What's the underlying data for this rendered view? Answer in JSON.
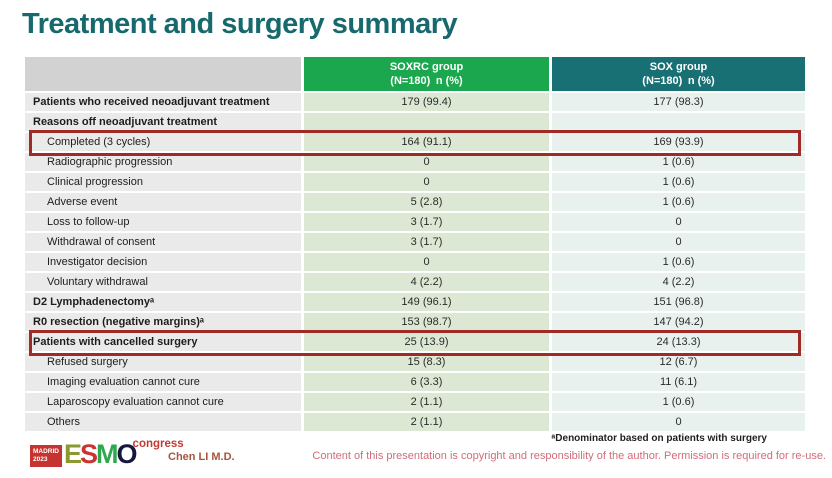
{
  "title": "Treatment and surgery summary",
  "table": {
    "header": {
      "soxrc_line1": "SOXRC group",
      "soxrc_line2": "(N=180) n (%)",
      "sox_line1": "SOX group",
      "sox_line2": "(N=180) n (%)"
    },
    "rows": [
      {
        "label": "Patients who received neoadjuvant treatment",
        "soxrc": "179 (99.4)",
        "sox": "177 (98.3)",
        "bold": true,
        "indent": false,
        "highlight": false
      },
      {
        "label": "Reasons off neoadjuvant treatment",
        "soxrc": "",
        "sox": "",
        "bold": true,
        "indent": false,
        "highlight": false
      },
      {
        "label": "Completed (3 cycles)",
        "soxrc": "164 (91.1)",
        "sox": "169 (93.9)",
        "bold": false,
        "indent": true,
        "highlight": true
      },
      {
        "label": "Radiographic progression",
        "soxrc": "0",
        "sox": "1 (0.6)",
        "bold": false,
        "indent": true,
        "highlight": false
      },
      {
        "label": "Clinical progression",
        "soxrc": "0",
        "sox": "1 (0.6)",
        "bold": false,
        "indent": true,
        "highlight": false
      },
      {
        "label": "Adverse event",
        "soxrc": "5 (2.8)",
        "sox": "1 (0.6)",
        "bold": false,
        "indent": true,
        "highlight": false
      },
      {
        "label": "Loss to follow-up",
        "soxrc": "3 (1.7)",
        "sox": "0",
        "bold": false,
        "indent": true,
        "highlight": false
      },
      {
        "label": "Withdrawal of consent",
        "soxrc": "3 (1.7)",
        "sox": "0",
        "bold": false,
        "indent": true,
        "highlight": false
      },
      {
        "label": "Investigator decision",
        "soxrc": "0",
        "sox": "1 (0.6)",
        "bold": false,
        "indent": true,
        "highlight": false
      },
      {
        "label": "Voluntary withdrawal",
        "soxrc": "4 (2.2)",
        "sox": "4 (2.2)",
        "bold": false,
        "indent": true,
        "highlight": false
      },
      {
        "label": "D2 Lymphadenectomyᵃ",
        "soxrc": "149 (96.1)",
        "sox": "151 (96.8)",
        "bold": true,
        "indent": false,
        "highlight": false
      },
      {
        "label": "R0 resection (negative margins)ᵃ",
        "soxrc": "153 (98.7)",
        "sox": "147 (94.2)",
        "bold": true,
        "indent": false,
        "highlight": false
      },
      {
        "label": "Patients with cancelled surgery",
        "soxrc": "25 (13.9)",
        "sox": "24 (13.3)",
        "bold": true,
        "indent": false,
        "highlight": true
      },
      {
        "label": "Refused surgery",
        "soxrc": "15 (8.3)",
        "sox": "12 (6.7)",
        "bold": false,
        "indent": true,
        "highlight": false
      },
      {
        "label": "Imaging evaluation cannot cure",
        "soxrc": "6 (3.3)",
        "sox": "11 (6.1)",
        "bold": false,
        "indent": true,
        "highlight": false
      },
      {
        "label": "Laparoscopy evaluation cannot cure",
        "soxrc": "2 (1.1)",
        "sox": "1 (0.6)",
        "bold": false,
        "indent": true,
        "highlight": false
      },
      {
        "label": "Others",
        "soxrc": "2 (1.1)",
        "sox": "0",
        "bold": false,
        "indent": true,
        "highlight": false
      }
    ]
  },
  "footer": {
    "logo": {
      "city": "MADRID",
      "year": "2023",
      "letters": [
        "E",
        "S",
        "M",
        "O"
      ],
      "congress": "congress"
    },
    "author": "Chen LI M.D.",
    "footnote": "ᵃDenominator based on patients with surgery",
    "copyright": "Content of this presentation is copyright and responsibility of the author. Permission is required for re-use."
  },
  "colors": {
    "title_teal": "#17696d",
    "header_green": "#1ba74e",
    "header_teal": "#186f74",
    "soxrc_cell": "#dce8d4",
    "sox_cell": "#e9f1ef",
    "label_cell": "#eaeaea",
    "highlight_border": "#9e2b26",
    "copyright_pink": "#d06d7a",
    "author_red": "#a5543e"
  }
}
